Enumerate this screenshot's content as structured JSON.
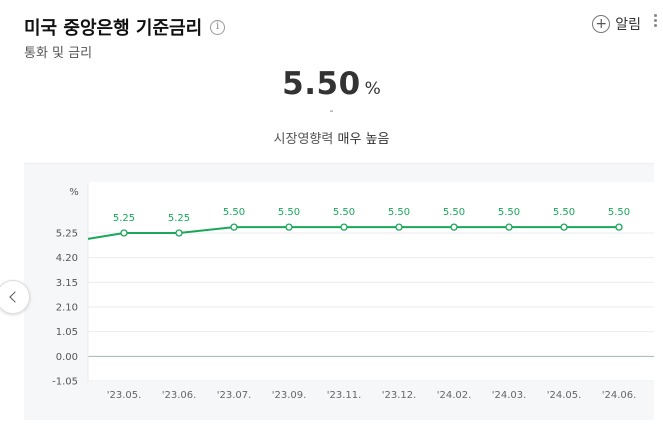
{
  "header": {
    "title": "미국 중앙은행 기준금리",
    "info_icon": "i",
    "subtitle": "통화 및 금리",
    "alarm_label": "알림"
  },
  "summary": {
    "value": "5.50",
    "unit": "%",
    "change": "-",
    "impact_label": "시장영향력",
    "impact_value": "매우 높음"
  },
  "colors": {
    "line": "#1aa75b",
    "accent": "#2db400"
  },
  "chart_data": {
    "type": "line",
    "ylabel": "%",
    "ylim": [
      -1.05,
      6.3
    ],
    "yticks": [
      5.25,
      4.2,
      3.15,
      2.1,
      1.05,
      0.0,
      -1.05
    ],
    "ytick_labels": [
      "5.25",
      "4.20",
      "3.15",
      "2.10",
      "1.05",
      "0.00",
      "-1.05"
    ],
    "categories": [
      "'23.05.",
      "'23.06.",
      "'23.07.",
      "'23.09.",
      "'23.11.",
      "'23.12.",
      "'24.02.",
      "'24.03.",
      "'24.05.",
      "'24.06."
    ],
    "values": [
      5.25,
      5.25,
      5.5,
      5.5,
      5.5,
      5.5,
      5.5,
      5.5,
      5.5,
      5.5
    ],
    "data_labels": [
      "5.25",
      "5.25",
      "5.50",
      "5.50",
      "5.50",
      "5.50",
      "5.50",
      "5.50",
      "5.50",
      "5.50"
    ],
    "start_value": 5.0
  }
}
